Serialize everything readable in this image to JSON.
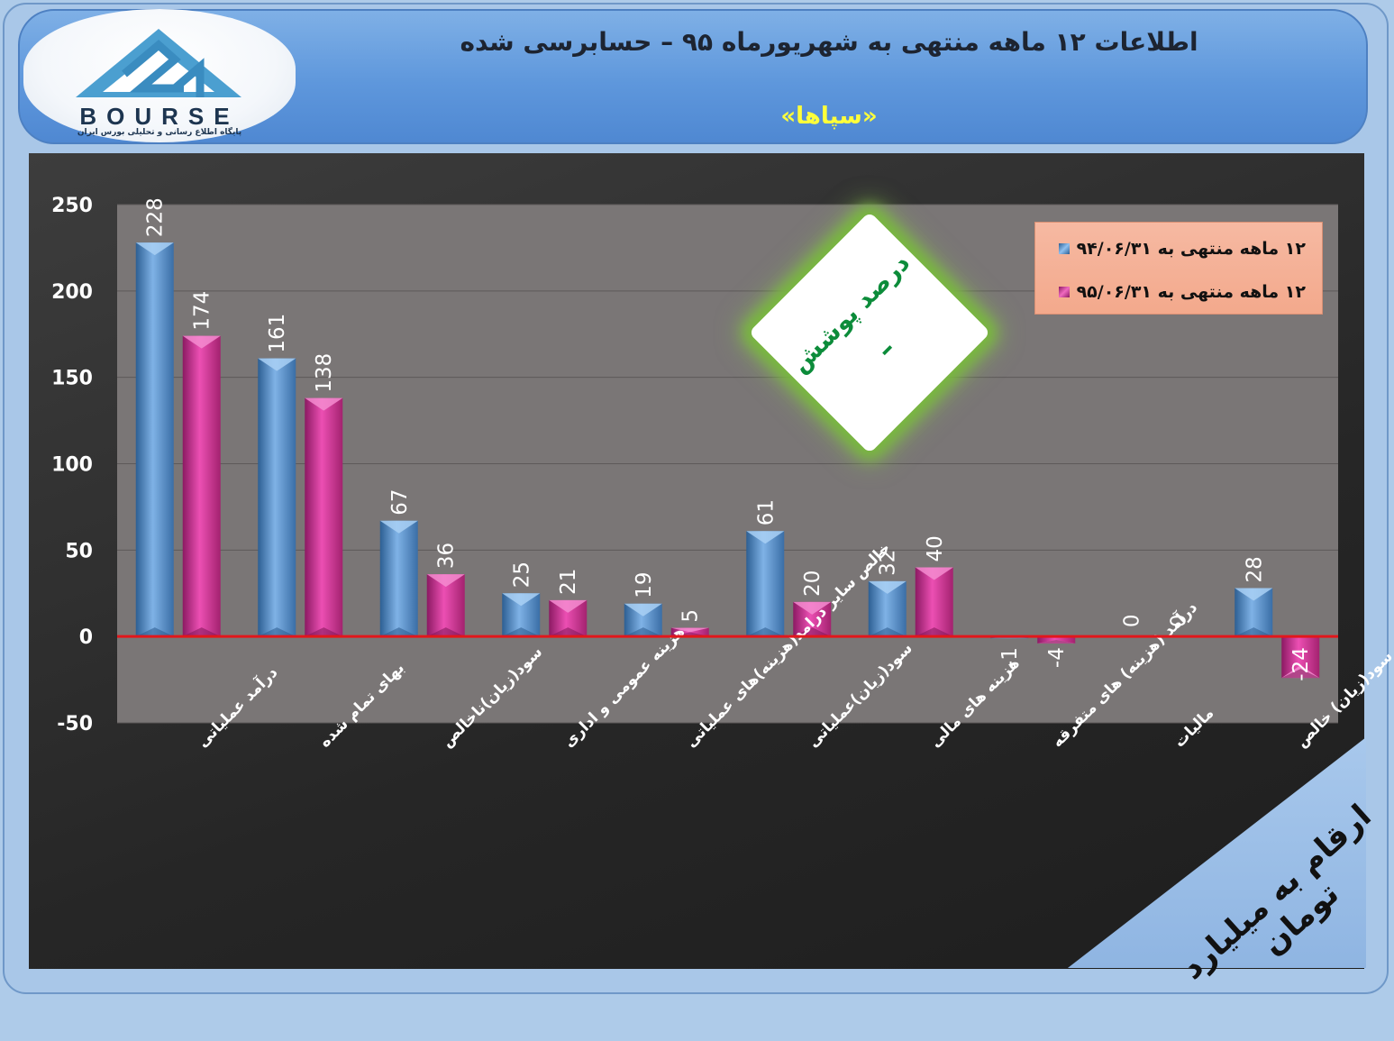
{
  "header": {
    "title": "اطلاعات ۱۲  ماهه منتهی به شهریورماه ۹۵ – حسابرسی شده",
    "subtitle": "«سپاها»"
  },
  "logo": {
    "word": "BOURSE",
    "tagline": "پایگاه اطلاع رسانی و تحلیلی بورس ایران"
  },
  "badge": {
    "title": "درصد پوشش",
    "value": "–"
  },
  "units_note": "ارقام به میلیارد تومان",
  "colors": {
    "series1": "#5b9bd5",
    "series2": "#d6349a",
    "zero_line": "#e3161b",
    "plot_bg": "#7a7a7a"
  },
  "chart_data": {
    "type": "bar",
    "categories": [
      "درآمد عملیاتی",
      "بهای تمام شده",
      "سود(زیان)ناخالص",
      "هزینه عمومی و اداری",
      "خالص سایر درامد(هزینه)های عملیاتی",
      "سود(زیان)عملیاتی",
      "هزینه های مالی",
      "درآمد (هزینه) های متفرقه",
      "مالیات",
      "سود(زیان) خالص"
    ],
    "series": [
      {
        "name": "۱۲ ماهه منتهی به ۹۴/۰۶/۳۱",
        "values": [
          228,
          161,
          67,
          25,
          19,
          61,
          32,
          -1,
          0,
          28
        ]
      },
      {
        "name": "۱۲ ماهه منتهی به ۹۵/۰۶/۳۱",
        "values": [
          174,
          138,
          36,
          21,
          5,
          20,
          40,
          -4,
          0,
          -24
        ]
      }
    ],
    "yticks": [
      "250",
      "200",
      "150",
      "100",
      "50",
      "0",
      "-50"
    ],
    "ylim": [
      -50,
      250
    ],
    "grid": true,
    "legend_position": "top-right"
  }
}
